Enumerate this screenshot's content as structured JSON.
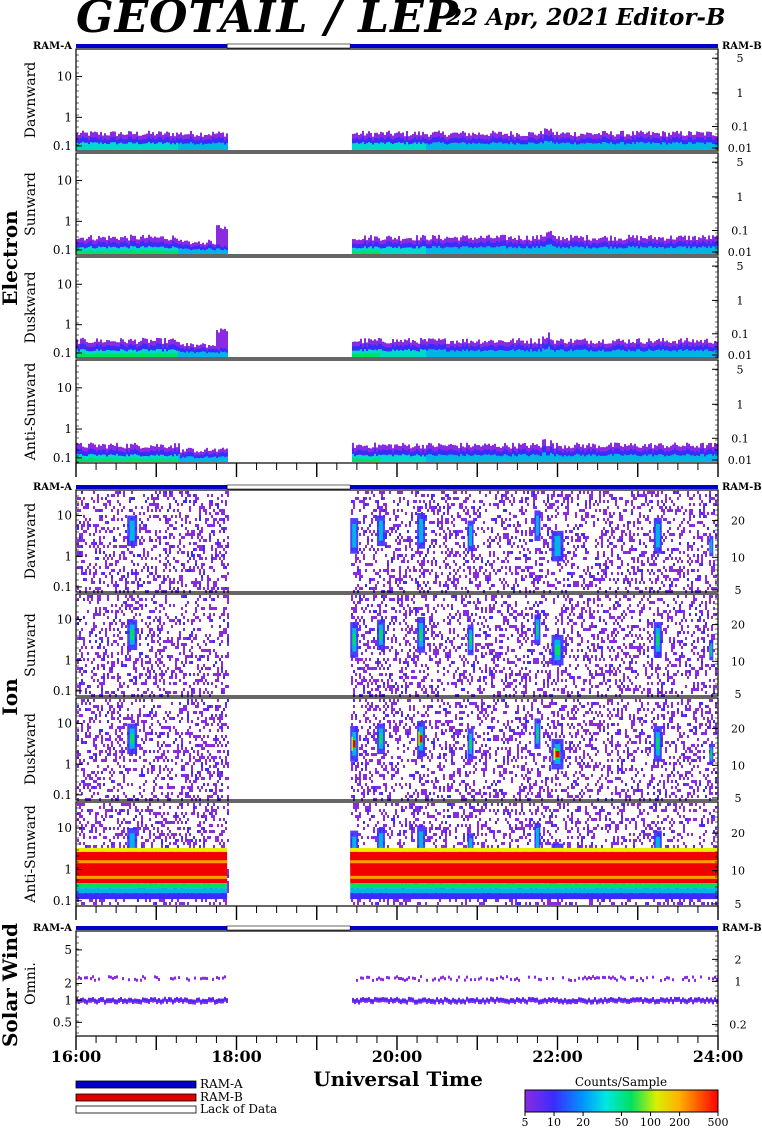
{
  "header": {
    "title": "GEOTAIL / LEP",
    "date": "22 Apr, 2021",
    "editor": "Editor-B"
  },
  "chart_data": {
    "type": "heatmap",
    "xlabel": "Universal Time",
    "x_ticks": [
      "16:00",
      "18:00",
      "20:00",
      "22:00",
      "24:00"
    ],
    "xlim": [
      "16:00",
      "24:00"
    ],
    "data_gap": {
      "start": "17:53",
      "end": "19:25"
    },
    "mode_bar_labels": {
      "left": "RAM-A",
      "right": "RAM-B"
    },
    "groups": [
      {
        "name": "Electron",
        "panels": [
          {
            "direction": "Dawnward",
            "y_ticks": [
              "10",
              "1",
              "0.1"
            ],
            "right_ticks": [
              "5",
              "1",
              "0.1",
              "0.01"
            ]
          },
          {
            "direction": "Sunward",
            "y_ticks": [
              "10",
              "1",
              "0.1"
            ],
            "right_ticks": [
              "5",
              "1",
              "0.1",
              "0.01"
            ]
          },
          {
            "direction": "Duskward",
            "y_ticks": [
              "10",
              "1",
              "0.1"
            ],
            "right_ticks": [
              "5",
              "1",
              "0.1",
              "0.01"
            ]
          },
          {
            "direction": "Anti-Sunward",
            "y_ticks": [
              "10",
              "1",
              "0.1"
            ],
            "right_ticks": [
              "5",
              "1",
              "0.1",
              "0.01"
            ]
          }
        ]
      },
      {
        "name": "Ion",
        "panels": [
          {
            "direction": "Dawnward",
            "y_ticks": [
              "10",
              "1",
              "0.1"
            ],
            "right_ticks": [
              "20",
              "10",
              "5"
            ]
          },
          {
            "direction": "Sunward",
            "y_ticks": [
              "10",
              "1",
              "0.1"
            ],
            "right_ticks": [
              "20",
              "10",
              "5"
            ]
          },
          {
            "direction": "Duskward",
            "y_ticks": [
              "10",
              "1",
              "0.1"
            ],
            "right_ticks": [
              "20",
              "10",
              "5"
            ]
          },
          {
            "direction": "Anti-Sunward",
            "y_ticks": [
              "10",
              "1",
              "0.1"
            ],
            "right_ticks": [
              "20",
              "10",
              "5"
            ]
          }
        ]
      },
      {
        "name": "Solar Wind",
        "panels": [
          {
            "direction": "Omni.",
            "y_ticks": [
              "5",
              "2",
              "1",
              "0.5"
            ],
            "right_ticks": [
              "2",
              "1",
              "0.2"
            ]
          }
        ]
      }
    ],
    "legend": {
      "placement": "bottom-left",
      "entries": [
        {
          "label": "RAM-A",
          "color": "#0000c8"
        },
        {
          "label": "RAM-B",
          "color": "#e00000"
        },
        {
          "label": "Lack of Data",
          "color": "#ffffff"
        }
      ]
    },
    "colorbar": {
      "title": "Counts/Sample",
      "ticks": [
        "5",
        "10",
        "20",
        "50",
        "100",
        "200",
        "500"
      ],
      "range": [
        5,
        500
      ],
      "scale": "log"
    }
  }
}
